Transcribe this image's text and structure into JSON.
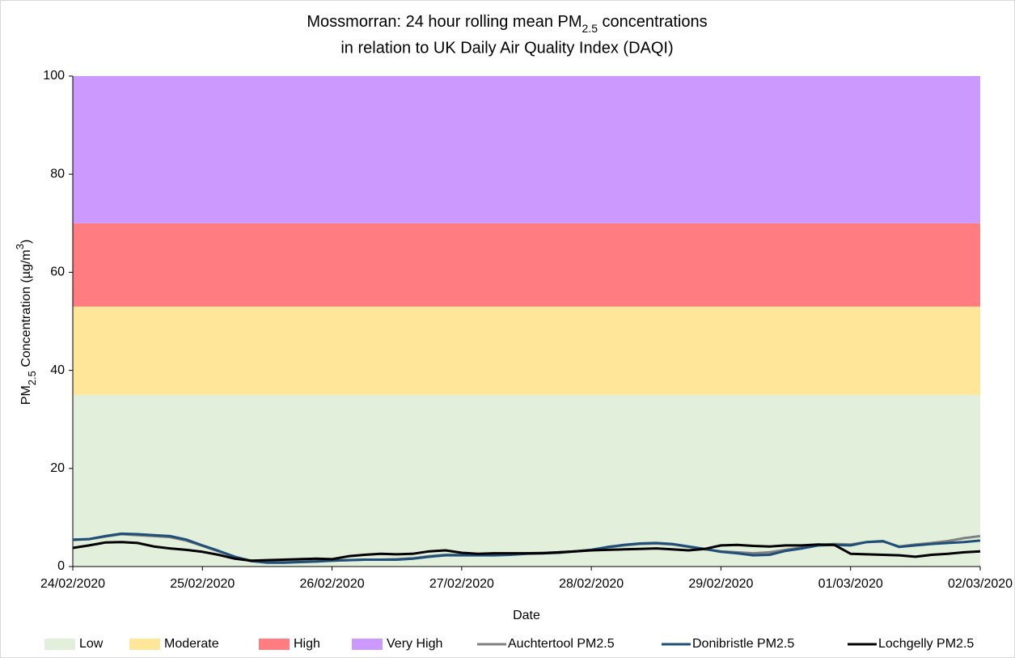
{
  "chart_data": {
    "type": "line",
    "title": [
      "Mossmorran: 24 hour rolling mean PM",
      "2.5",
      " concentrations"
    ],
    "subtitle": "in relation to UK Daily Air Quality Index (DAQI)",
    "y_label": [
      "PM",
      "2.5",
      " Concentration (µg/m",
      "3",
      ")"
    ],
    "x_label": "Date",
    "categories": [
      "24/02/2020",
      null,
      null,
      null,
      null,
      null,
      null,
      null,
      "25/02/2020",
      null,
      null,
      null,
      null,
      null,
      null,
      null,
      "26/02/2020",
      null,
      null,
      null,
      null,
      null,
      null,
      null,
      "27/02/2020",
      null,
      null,
      null,
      null,
      null,
      null,
      null,
      "28/02/2020",
      null,
      null,
      null,
      null,
      null,
      null,
      null,
      "29/02/2020",
      null,
      null,
      null,
      null,
      null,
      null,
      null,
      "01/03/2020",
      null,
      null,
      null,
      null,
      null,
      null,
      null,
      "02/03/2020"
    ],
    "bands": [
      {
        "name": "Low",
        "color": "#e2efda",
        "from": 0,
        "to": 35
      },
      {
        "name": "Moderate",
        "color": "#ffe699",
        "from": 35,
        "to": 53
      },
      {
        "name": "High",
        "color": "#ff7c80",
        "from": 53,
        "to": 70
      },
      {
        "name": "Very High",
        "color": "#cc99ff",
        "from": 70,
        "to": 100
      }
    ],
    "series": [
      {
        "name": "Auchtertool PM2.5",
        "color": "#808080",
        "values": [
          5.4,
          5.6,
          6.1,
          6.6,
          6.4,
          6.2,
          6.0,
          5.3,
          4.2,
          3.1,
          2.0,
          1.2,
          0.9,
          0.9,
          1.0,
          1.1,
          1.2,
          1.3,
          1.4,
          1.4,
          1.5,
          1.7,
          2.1,
          2.4,
          2.4,
          2.4,
          2.3,
          2.5,
          2.7,
          2.8,
          2.9,
          3.1,
          3.4,
          3.9,
          4.3,
          4.6,
          4.7,
          4.5,
          4.0,
          3.5,
          3.1,
          2.9,
          2.7,
          2.9,
          3.4,
          3.9,
          4.4,
          4.6,
          4.5,
          5.0,
          5.1,
          4.1,
          4.5,
          4.8,
          5.2,
          5.8,
          6.2
        ]
      },
      {
        "name": "Donibristle PM2.5",
        "color": "#1f4e79",
        "values": [
          5.5,
          5.6,
          6.2,
          6.7,
          6.6,
          6.4,
          6.2,
          5.5,
          4.3,
          3.2,
          2.0,
          1.1,
          0.8,
          0.8,
          0.9,
          1.0,
          1.2,
          1.3,
          1.4,
          1.4,
          1.4,
          1.6,
          2.0,
          2.3,
          2.3,
          2.3,
          2.3,
          2.4,
          2.6,
          2.7,
          2.8,
          3.1,
          3.4,
          4.0,
          4.4,
          4.7,
          4.8,
          4.6,
          4.1,
          3.6,
          3.0,
          2.7,
          2.3,
          2.4,
          3.2,
          3.7,
          4.3,
          4.4,
          4.3,
          5.0,
          5.2,
          4.0,
          4.3,
          4.6,
          4.8,
          5.0,
          5.3
        ]
      },
      {
        "name": "Lochgelly PM2.5",
        "color": "#000000",
        "values": [
          3.8,
          4.3,
          4.9,
          5.0,
          4.8,
          4.1,
          3.7,
          3.4,
          3.0,
          2.4,
          1.6,
          1.2,
          1.3,
          1.4,
          1.5,
          1.6,
          1.5,
          2.1,
          2.4,
          2.6,
          2.5,
          2.6,
          3.1,
          3.3,
          2.8,
          2.6,
          2.7,
          2.7,
          2.7,
          2.7,
          2.9,
          3.1,
          3.3,
          3.4,
          3.5,
          3.6,
          3.7,
          3.5,
          3.3,
          3.6,
          4.3,
          4.4,
          4.2,
          4.1,
          4.3,
          4.3,
          4.5,
          4.4,
          2.6,
          2.5,
          2.4,
          2.3,
          2.0,
          2.4,
          2.6,
          2.9,
          3.1
        ]
      }
    ],
    "ylim": [
      0,
      100
    ],
    "yticks": [
      0,
      20,
      40,
      60,
      80,
      100
    ]
  }
}
